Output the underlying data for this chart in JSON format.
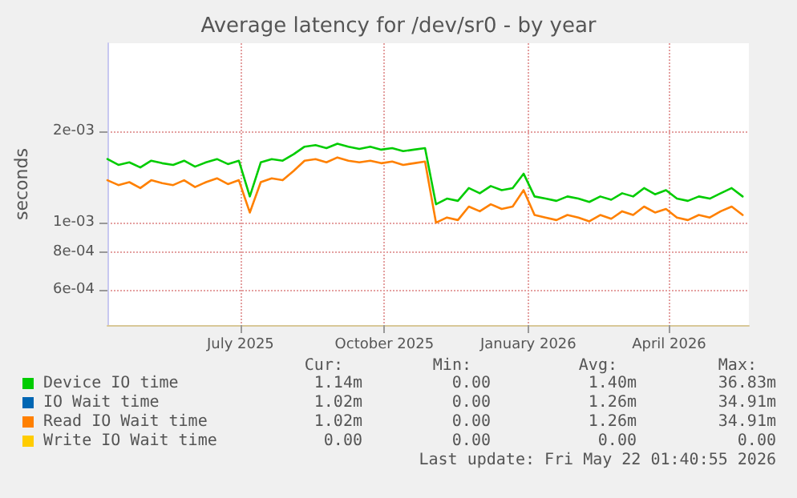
{
  "chart_data": {
    "type": "line",
    "title": "Average latency for /dev/sr0 - by year",
    "ylabel": "seconds",
    "log": "y",
    "grid": true,
    "legend": "bottom",
    "marker": "none",
    "line_style": "solid",
    "x": [
      "2025-04-07",
      "2025-04-14",
      "2025-04-21",
      "2025-04-28",
      "2025-05-05",
      "2025-05-12",
      "2025-05-19",
      "2025-05-26",
      "2025-06-02",
      "2025-06-09",
      "2025-06-16",
      "2025-06-23",
      "2025-06-30",
      "2025-07-07",
      "2025-07-14",
      "2025-07-21",
      "2025-07-28",
      "2025-08-04",
      "2025-08-11",
      "2025-08-18",
      "2025-08-25",
      "2025-09-01",
      "2025-09-08",
      "2025-09-15",
      "2025-09-22",
      "2025-09-29",
      "2025-10-06",
      "2025-10-13",
      "2025-10-20",
      "2025-10-27",
      "2025-11-03",
      "2025-11-10",
      "2025-11-17",
      "2025-11-24",
      "2025-12-01",
      "2025-12-08",
      "2025-12-15",
      "2025-12-22",
      "2025-12-29",
      "2026-01-05",
      "2026-01-12",
      "2026-01-19",
      "2026-01-26",
      "2026-02-02",
      "2026-02-09",
      "2026-02-16",
      "2026-02-23",
      "2026-03-02",
      "2026-03-09",
      "2026-03-16",
      "2026-03-23",
      "2026-03-30",
      "2026-04-06",
      "2026-04-13",
      "2026-04-20",
      "2026-04-27",
      "2026-05-04",
      "2026-05-11",
      "2026-05-18"
    ],
    "xlim": [
      "2025-04-07",
      "2026-05-22"
    ],
    "xticks": [
      {
        "value": "2025-07-01",
        "label": "July 2025"
      },
      {
        "value": "2025-10-01",
        "label": "October 2025"
      },
      {
        "value": "2026-01-01",
        "label": "January 2026"
      },
      {
        "value": "2026-04-01",
        "label": "April 2026"
      }
    ],
    "ylim": [
      0.00046,
      0.0039
    ],
    "yticks": [
      {
        "value": 0.0006,
        "label": "6e-04"
      },
      {
        "value": 0.0008,
        "label": "8e-04"
      },
      {
        "value": 0.001,
        "label": "1e-03"
      },
      {
        "value": 0.002,
        "label": "2e-03"
      }
    ],
    "series": [
      {
        "name": "Device IO time",
        "color": "#00cc00",
        "values": [
          0.00162,
          0.00155,
          0.00158,
          0.00152,
          0.0016,
          0.00157,
          0.00155,
          0.0016,
          0.00153,
          0.00158,
          0.00162,
          0.00156,
          0.0016,
          0.00122,
          0.00158,
          0.00162,
          0.0016,
          0.00168,
          0.00178,
          0.0018,
          0.00176,
          0.00182,
          0.00178,
          0.00175,
          0.00178,
          0.00174,
          0.00176,
          0.00172,
          0.00174,
          0.00176,
          0.00115,
          0.0012,
          0.00118,
          0.0013,
          0.00125,
          0.00132,
          0.00128,
          0.0013,
          0.00145,
          0.00122,
          0.0012,
          0.00118,
          0.00122,
          0.0012,
          0.00117,
          0.00122,
          0.00119,
          0.00125,
          0.00122,
          0.0013,
          0.00124,
          0.00128,
          0.0012,
          0.00118,
          0.00122,
          0.0012,
          0.00125,
          0.0013,
          0.00122
        ]
      },
      {
        "name": "IO Wait time",
        "color": "#0066b3",
        "values": [
          null,
          null,
          null,
          null,
          null,
          null,
          null,
          null,
          null,
          null,
          null,
          null,
          null,
          null,
          null,
          null,
          null,
          null,
          null,
          null,
          null,
          null,
          null,
          null,
          null,
          null,
          null,
          null,
          null,
          null,
          null,
          null,
          null,
          null,
          null,
          null,
          null,
          null,
          null,
          null,
          null,
          null,
          null,
          null,
          null,
          null,
          null,
          null,
          null,
          null,
          null,
          null,
          null,
          null,
          null,
          null,
          null,
          null,
          null
        ]
      },
      {
        "name": "Read IO Wait time",
        "color": "#ff8000",
        "values": [
          0.00138,
          0.00133,
          0.00136,
          0.0013,
          0.00138,
          0.00135,
          0.00133,
          0.00138,
          0.00131,
          0.00136,
          0.0014,
          0.00134,
          0.00138,
          0.00108,
          0.00136,
          0.0014,
          0.00138,
          0.00148,
          0.0016,
          0.00162,
          0.00158,
          0.00164,
          0.0016,
          0.00158,
          0.0016,
          0.00157,
          0.00159,
          0.00155,
          0.00157,
          0.00159,
          0.001,
          0.00104,
          0.00102,
          0.00113,
          0.00109,
          0.00115,
          0.00111,
          0.00113,
          0.00128,
          0.00106,
          0.00104,
          0.00102,
          0.00106,
          0.00104,
          0.00101,
          0.00106,
          0.00103,
          0.00109,
          0.00106,
          0.00113,
          0.00108,
          0.00111,
          0.00104,
          0.00102,
          0.00106,
          0.00104,
          0.00109,
          0.00113,
          0.00106
        ]
      },
      {
        "name": "Write IO Wait time",
        "color": "#ffcc00",
        "values": [
          null,
          null,
          null,
          null,
          null,
          null,
          null,
          null,
          null,
          null,
          null,
          null,
          null,
          null,
          null,
          null,
          null,
          null,
          null,
          null,
          null,
          null,
          null,
          null,
          null,
          null,
          null,
          null,
          null,
          null,
          null,
          null,
          null,
          null,
          null,
          null,
          null,
          null,
          null,
          null,
          null,
          null,
          null,
          null,
          null,
          null,
          null,
          null,
          null,
          null,
          null,
          null,
          null,
          null,
          null,
          null,
          null,
          null,
          null
        ]
      }
    ],
    "annotations": [
      "Cur:",
      "Min:",
      "Avg:",
      "Max:",
      "1.14m",
      "0.00",
      "1.40m",
      "36.83m",
      "1.02m",
      "0.00",
      "1.26m",
      "34.91m",
      "1.02m",
      "0.00",
      "1.26m",
      "34.91m",
      "0.00",
      "0.00",
      "0.00",
      "0.00",
      "Last update: Fri May 22 01:40:55 2026"
    ]
  }
}
